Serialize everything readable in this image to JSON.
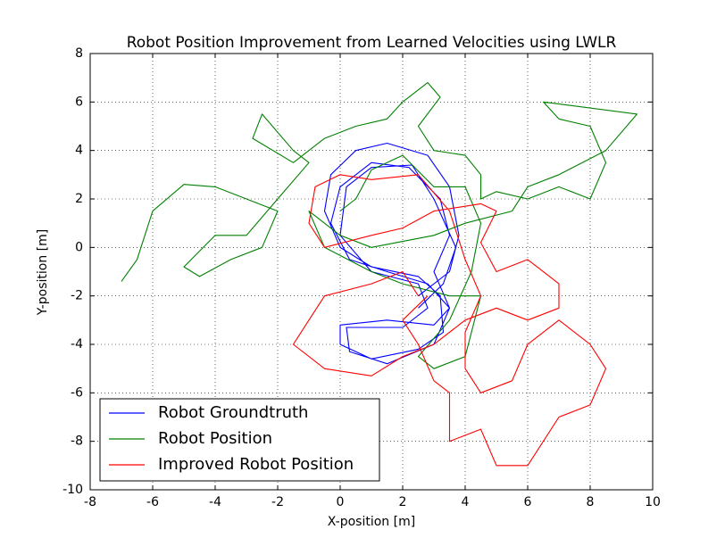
{
  "chart_data": {
    "type": "line",
    "title": "Robot Position Improvement from Learned Velocities using LWLR",
    "xlabel": "X-position [m]",
    "ylabel": "Y-position [m]",
    "xlim": [
      -8,
      10
    ],
    "ylim": [
      -10,
      8
    ],
    "xticks": [
      -8,
      -6,
      -4,
      -2,
      0,
      2,
      4,
      6,
      8,
      10
    ],
    "yticks": [
      -10,
      -8,
      -6,
      -4,
      -2,
      0,
      2,
      4,
      6,
      8
    ],
    "grid": true,
    "legend": "lower left",
    "series": [
      {
        "name": "Robot Groundtruth",
        "color": "#0000ff",
        "x": [
          2.5,
          3.5,
          3.8,
          3.5,
          2.8,
          1.5,
          0.5,
          -0.3,
          -0.5,
          0,
          1,
          2.5,
          3.2,
          3.3,
          2.5,
          1,
          0,
          0,
          1.5,
          3,
          3.5,
          3,
          3.5,
          3.2,
          2.2,
          1,
          0,
          -0.3,
          0.3,
          1.5,
          2.8,
          3.5,
          3,
          1.5,
          0.3,
          0.2,
          2,
          2.8,
          2.5,
          1,
          0,
          0.2,
          1,
          2.3,
          3,
          3.7,
          3.3,
          2.5
        ],
        "values": [
          -2,
          -1,
          0.5,
          2.5,
          3.8,
          4.3,
          4,
          3,
          1.5,
          0,
          -0.8,
          -1.2,
          -2,
          -3.5,
          -4.2,
          -4.6,
          -4,
          -3.2,
          -3,
          -3.2,
          -2.5,
          -1,
          0.5,
          2,
          3.3,
          3.5,
          2.5,
          1,
          -0.5,
          -1,
          -1.5,
          -2.5,
          -4,
          -4.8,
          -4.3,
          -3.3,
          -3.3,
          -2.5,
          -1.5,
          -1,
          0.5,
          2.5,
          3.3,
          3.4,
          2,
          0,
          -1.5,
          -2.5
        ]
      },
      {
        "name": "Robot Position",
        "color": "#008000",
        "x": [
          -7,
          -6.5,
          -6,
          -5,
          -4,
          -3,
          -2,
          -2.5,
          -3.5,
          -4.5,
          -5,
          -4,
          -3,
          -2,
          -1,
          -1.5,
          -2.5,
          -2.8,
          -1.5,
          -0.5,
          0.5,
          1.5,
          2,
          2.8,
          3.2,
          2.5,
          3,
          4,
          4.5,
          4.5,
          5,
          6,
          7,
          8,
          8.5,
          8,
          7,
          6.5,
          9.5,
          8.5,
          7,
          6,
          5.5,
          4,
          3,
          1,
          0,
          -1,
          -0.5,
          1,
          2,
          3.5,
          4.5,
          4,
          3,
          2.5,
          3.5,
          4.2,
          4.5,
          4,
          3,
          2,
          1,
          0.5,
          0
        ],
        "values": [
          -1.4,
          -0.5,
          1.5,
          2.6,
          2.5,
          2,
          1.5,
          0,
          -0.5,
          -1.2,
          -0.8,
          0.5,
          0.5,
          2,
          3.5,
          4,
          5.5,
          4.5,
          3.5,
          4.5,
          5,
          5.3,
          6,
          6.8,
          6.2,
          5,
          4,
          3.8,
          3,
          2,
          2.3,
          2,
          2.5,
          2,
          3.5,
          5,
          5.3,
          6,
          5.5,
          4,
          3,
          2.5,
          1.5,
          1,
          0.5,
          0,
          0.5,
          1.5,
          0,
          -1,
          -1.5,
          -2,
          -2,
          -4.5,
          -5,
          -4.5,
          -3,
          -1,
          1,
          2.5,
          2.5,
          3.8,
          3.2,
          2,
          1.5
        ]
      },
      {
        "name": "Improved Robot Position",
        "color": "#ff0000",
        "x": [
          2.5,
          2,
          1,
          -0.5,
          -1,
          -1.5,
          -0.5,
          1,
          2,
          3,
          4,
          5,
          6,
          7,
          7,
          6,
          5,
          4.5,
          5,
          4.5,
          3,
          2,
          1,
          -0.5,
          -1,
          -0.8,
          0,
          1,
          2.5,
          3.5,
          4,
          4.5,
          4,
          4,
          4.5,
          5.5,
          6,
          7,
          8,
          8.5,
          8,
          7,
          6,
          5,
          4.5,
          3.5,
          3.5,
          3,
          2.5,
          2,
          2.8
        ],
        "values": [
          -2,
          -1,
          -1.5,
          -2,
          -3,
          -4,
          -5,
          -5.3,
          -4.5,
          -4,
          -3,
          -2.5,
          -3,
          -2.5,
          -1.5,
          -0.5,
          -1,
          0.2,
          1.5,
          1.8,
          1.5,
          0.8,
          0.5,
          0,
          1,
          2.5,
          3,
          2.8,
          3,
          1.5,
          -0.5,
          -2,
          -3.5,
          -5,
          -6,
          -5.5,
          -4,
          -3,
          -4,
          -5,
          -6.5,
          -7,
          -9,
          -9,
          -7.5,
          -8,
          -6,
          -5.5,
          -4,
          -3,
          -2
        ]
      }
    ]
  }
}
